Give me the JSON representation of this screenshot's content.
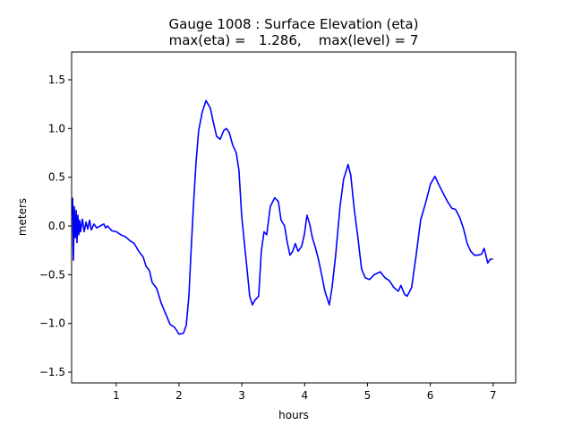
{
  "chart_data": {
    "type": "line",
    "title_line1": "Gauge 1008 : Surface Elevation (eta)",
    "title_line2": "max(eta) =   1.286,    max(level) = 7",
    "xlabel": "hours",
    "ylabel": "meters",
    "xlim": [
      0.29,
      7.36
    ],
    "ylim": [
      -1.61,
      1.785
    ],
    "xticks": [
      1,
      2,
      3,
      4,
      5,
      6,
      7
    ],
    "xtick_labels": [
      "1",
      "2",
      "3",
      "4",
      "5",
      "6",
      "7"
    ],
    "yticks": [
      1.5,
      1.0,
      0.5,
      0.0,
      -0.5,
      -1.0,
      -1.5
    ],
    "ytick_labels": [
      "1.5",
      "1.0",
      "0.5",
      "0.0",
      "−0.5",
      "−1.0",
      "−1.5"
    ],
    "grid": false,
    "series": [
      {
        "color": "#0000ff",
        "x": [
          0.305,
          0.319,
          0.333,
          0.348,
          0.362,
          0.376,
          0.39,
          0.405,
          0.419,
          0.433,
          0.462,
          0.49,
          0.519,
          0.547,
          0.575,
          0.604,
          0.647,
          0.689,
          0.746,
          0.803,
          0.832,
          0.86,
          0.932,
          1.003,
          1.074,
          1.145,
          1.217,
          1.288,
          1.359,
          1.43,
          1.473,
          1.53,
          1.573,
          1.644,
          1.715,
          1.786,
          1.858,
          1.929,
          2.0,
          2.071,
          2.114,
          2.157,
          2.185,
          2.228,
          2.271,
          2.313,
          2.37,
          2.43,
          2.498,
          2.541,
          2.598,
          2.655,
          2.712,
          2.755,
          2.798,
          2.855,
          2.912,
          2.954,
          2.997,
          3.04,
          3.083,
          3.125,
          3.168,
          3.211,
          3.268,
          3.311,
          3.353,
          3.396,
          3.453,
          3.524,
          3.581,
          3.624,
          3.681,
          3.724,
          3.766,
          3.809,
          3.852,
          3.895,
          3.952,
          3.994,
          4.037,
          4.08,
          4.123,
          4.165,
          4.222,
          4.279,
          4.322,
          4.393,
          4.436,
          4.493,
          4.564,
          4.621,
          4.692,
          4.735,
          4.792,
          4.849,
          4.906,
          4.963,
          5.034,
          5.105,
          5.205,
          5.276,
          5.348,
          5.419,
          5.49,
          5.533,
          5.59,
          5.632,
          5.704,
          5.775,
          5.846,
          5.932,
          6.003,
          6.074,
          6.131,
          6.202,
          6.274,
          6.345,
          6.402,
          6.473,
          6.53,
          6.587,
          6.644,
          6.701,
          6.758,
          6.815,
          6.858,
          6.915,
          6.957,
          7.0
        ],
        "y": [
          0.29,
          -0.35,
          0.2,
          -0.12,
          0.16,
          -0.17,
          0.11,
          -0.09,
          0.06,
          -0.06,
          0.07,
          -0.06,
          0.04,
          -0.03,
          0.06,
          -0.04,
          0.02,
          -0.02,
          0,
          0.02,
          -0.02,
          0,
          -0.05,
          -0.06,
          -0.09,
          -0.11,
          -0.15,
          -0.18,
          -0.26,
          -0.32,
          -0.41,
          -0.46,
          -0.58,
          -0.64,
          -0.79,
          -0.9,
          -1.01,
          -1.04,
          -1.11,
          -1.1,
          -1.02,
          -0.72,
          -0.35,
          0.2,
          0.66,
          0.98,
          1.17,
          1.286,
          1.21,
          1.08,
          0.92,
          0.89,
          0.98,
          1.0,
          0.96,
          0.83,
          0.75,
          0.57,
          0.11,
          -0.17,
          -0.44,
          -0.72,
          -0.81,
          -0.76,
          -0.72,
          -0.26,
          -0.06,
          -0.09,
          0.2,
          0.29,
          0.25,
          0.06,
          0,
          -0.17,
          -0.3,
          -0.26,
          -0.18,
          -0.26,
          -0.21,
          -0.09,
          0.11,
          0.02,
          -0.12,
          -0.21,
          -0.35,
          -0.53,
          -0.67,
          -0.81,
          -0.63,
          -0.3,
          0.2,
          0.48,
          0.63,
          0.52,
          0.16,
          -0.12,
          -0.44,
          -0.53,
          -0.55,
          -0.5,
          -0.47,
          -0.53,
          -0.56,
          -0.63,
          -0.67,
          -0.61,
          -0.7,
          -0.72,
          -0.63,
          -0.3,
          0.06,
          0.25,
          0.43,
          0.51,
          0.43,
          0.34,
          0.25,
          0.18,
          0.17,
          0.08,
          -0.03,
          -0.18,
          -0.26,
          -0.3,
          -0.3,
          -0.29,
          -0.23,
          -0.38,
          -0.34,
          -0.34
        ]
      }
    ]
  }
}
